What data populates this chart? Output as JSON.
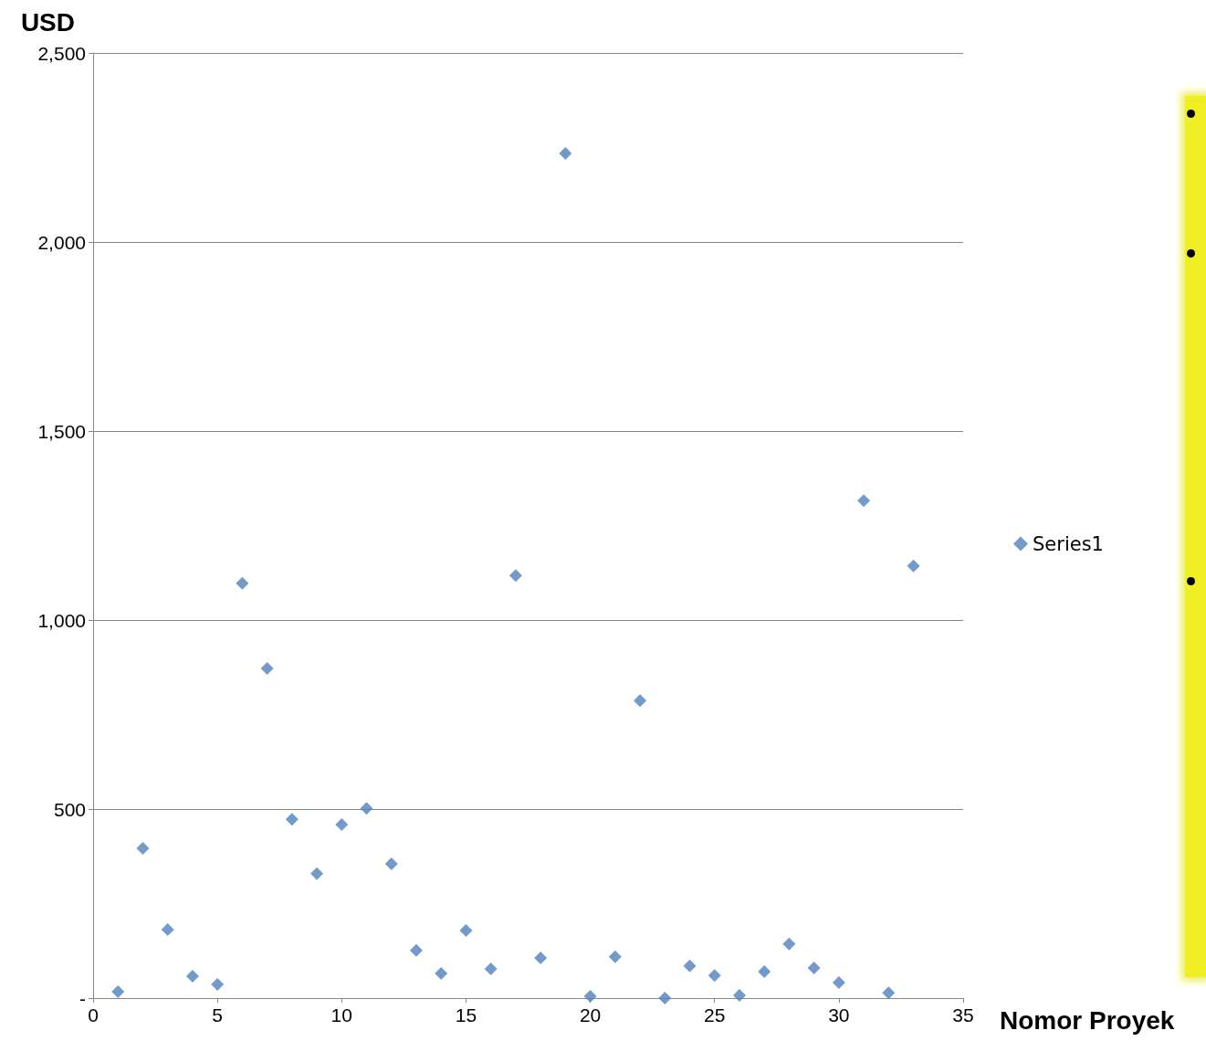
{
  "chart_data": {
    "type": "scatter",
    "xlabel": "Nomor Proyek",
    "ylabel": "USD",
    "series": [
      {
        "name": "Series1",
        "color": "#4f81bd",
        "x": [
          1,
          2,
          3,
          4,
          5,
          6,
          7,
          8,
          9,
          10,
          11,
          12,
          13,
          14,
          15,
          16,
          17,
          18,
          19,
          20,
          21,
          22,
          23,
          24,
          25,
          26,
          27,
          28,
          29,
          30,
          31,
          32,
          33
        ],
        "values": [
          17,
          396,
          181,
          58,
          36,
          1097,
          872,
          473,
          329,
          459,
          502,
          355,
          126,
          65,
          179,
          77,
          1118,
          106,
          2234,
          5,
          109,
          787,
          0,
          85,
          60,
          7,
          70,
          143,
          80,
          41,
          1316,
          14,
          1143
        ]
      }
    ],
    "xlim": [
      0,
      35
    ],
    "xticks": [
      0,
      5,
      10,
      15,
      20,
      25,
      30,
      35
    ],
    "ylim": [
      0,
      2500
    ],
    "yticks": [
      {
        "value": 0,
        "label": "-"
      },
      {
        "value": 500,
        "label": "500"
      },
      {
        "value": 1000,
        "label": "1,000"
      },
      {
        "value": 1500,
        "label": "1,500"
      },
      {
        "value": 2000,
        "label": "2,000"
      },
      {
        "value": 2500,
        "label": "2,500"
      }
    ],
    "grid": "y",
    "legend": "right",
    "marker": "diamond"
  }
}
